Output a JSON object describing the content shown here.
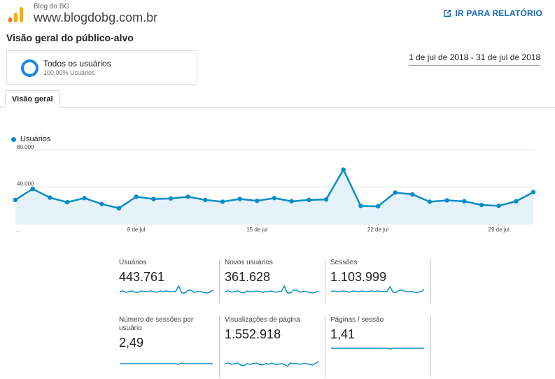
{
  "header": {
    "account": "Blog do BG",
    "property": "www.blogdobg.com.br",
    "open_report": "IR PARA RELATÓRIO",
    "open_report_icon": "external-link-icon"
  },
  "page_title": "Visão geral do público-alvo",
  "segment": {
    "name": "Todos os usuários",
    "pct": "100,00% Usuários",
    "color": "#1e88e5"
  },
  "date_range": "1 de jul de 2018 - 31 de jul de 2018",
  "tabs": [
    {
      "label": "Visão geral"
    }
  ],
  "chart_data": {
    "type": "area",
    "series": [
      {
        "name": "Usuários",
        "color": "#058dc7",
        "values": [
          26000,
          38000,
          28500,
          23500,
          28000,
          21500,
          17000,
          29500,
          27000,
          27500,
          29500,
          26000,
          24000,
          27000,
          25000,
          28000,
          24500,
          26000,
          26500,
          59000,
          19500,
          19000,
          34000,
          32000,
          24000,
          25500,
          24500,
          20500,
          19500,
          24500,
          34500
        ]
      }
    ],
    "x_tick_labels": [
      "...",
      "8 de jul",
      "15 de jul",
      "22 de jul",
      "29 de jul"
    ],
    "x_tick_index": [
      0,
      7,
      14,
      21,
      28
    ],
    "y_ticks": [
      "80.000",
      "40.000"
    ],
    "y_tick_values": [
      80000,
      40000
    ],
    "ylim": [
      0,
      80000
    ],
    "grid": true,
    "legend": "top-left"
  },
  "metrics": [
    {
      "label": "Usuários",
      "value": "443.761",
      "spark": [
        11,
        12,
        10,
        11,
        12,
        10,
        10,
        12,
        11,
        11,
        12,
        11,
        10,
        12,
        11,
        12,
        11,
        11,
        11,
        19,
        9,
        9,
        13,
        13,
        10,
        11,
        11,
        10,
        9,
        10,
        13
      ]
    },
    {
      "label": "Novos usuários",
      "value": "361.628",
      "spark": [
        11,
        12,
        10,
        11,
        12,
        10,
        9,
        12,
        11,
        11,
        12,
        11,
        10,
        11,
        11,
        12,
        10,
        11,
        11,
        19,
        9,
        9,
        13,
        13,
        10,
        11,
        11,
        10,
        9,
        10,
        12
      ]
    },
    {
      "label": "Sessões",
      "value": "1.103.999",
      "spark": [
        11,
        12,
        11,
        11,
        12,
        11,
        10,
        12,
        11,
        11,
        12,
        11,
        11,
        12,
        11,
        12,
        11,
        11,
        11,
        18,
        10,
        10,
        13,
        13,
        11,
        11,
        11,
        10,
        10,
        11,
        14
      ]
    },
    {
      "label": "Número de sessões por usuário",
      "value": "2,49",
      "spark": [
        12,
        12,
        12,
        12,
        12,
        12,
        12,
        12,
        12,
        12,
        12,
        12,
        12,
        12,
        12,
        12,
        12,
        12,
        12,
        11,
        13,
        12,
        12,
        12,
        12,
        12,
        12,
        12,
        12,
        12,
        12
      ]
    },
    {
      "label": "Visualizações de página",
      "value": "1.552.918",
      "spark": [
        12,
        13,
        11,
        12,
        13,
        10,
        9,
        12,
        11,
        12,
        13,
        11,
        10,
        12,
        11,
        13,
        11,
        11,
        12,
        11,
        8,
        13,
        12,
        12,
        11,
        12,
        12,
        11,
        10,
        12,
        15
      ]
    },
    {
      "label": "Páginas / sessão",
      "value": "1,41",
      "spark": [
        12,
        12,
        12,
        12,
        12,
        12,
        12,
        12,
        12,
        12,
        12,
        12,
        12,
        12,
        12,
        12,
        12,
        12,
        12,
        11,
        12,
        12,
        12,
        12,
        12,
        12,
        12,
        12,
        12,
        12,
        12
      ]
    }
  ]
}
